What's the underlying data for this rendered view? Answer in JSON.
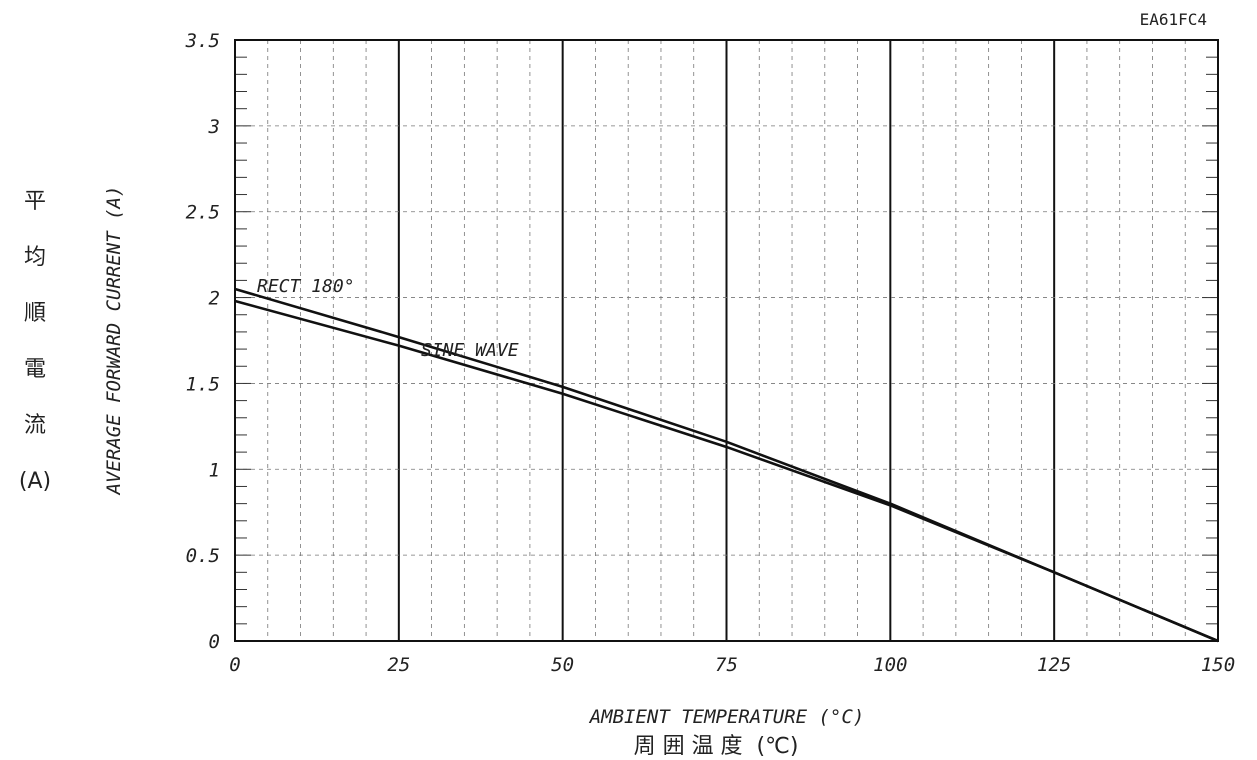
{
  "chart_data": {
    "type": "line",
    "code": "EA61FC4",
    "xlabel": "AMBIENT TEMPERATURE (°C)",
    "xlabel_jp": "周 囲 温 度  (℃)",
    "ylabel": "AVERAGE FORWARD CURRENT (A)",
    "ylabel_jp_chars": [
      "平",
      "均",
      "順",
      "電",
      "流",
      "(A)"
    ],
    "xlim": [
      0,
      150
    ],
    "ylim": [
      0,
      3.5
    ],
    "x_ticks": [
      "0",
      "25",
      "50",
      "75",
      "100",
      "125",
      "150"
    ],
    "y_ticks": [
      "0",
      "0.5",
      "1",
      "1.5",
      "2",
      "2.5",
      "3",
      "3.5"
    ],
    "grid": true,
    "series": [
      {
        "name": "RECT 180°",
        "x": [
          0,
          25,
          50,
          75,
          100,
          125,
          150
        ],
        "y": [
          2.05,
          1.77,
          1.48,
          1.16,
          0.8,
          0.4,
          0
        ]
      },
      {
        "name": "SINE WAVE",
        "x": [
          0,
          25,
          50,
          75,
          100,
          125,
          150
        ],
        "y": [
          1.98,
          1.72,
          1.44,
          1.13,
          0.79,
          0.4,
          0
        ]
      }
    ]
  }
}
